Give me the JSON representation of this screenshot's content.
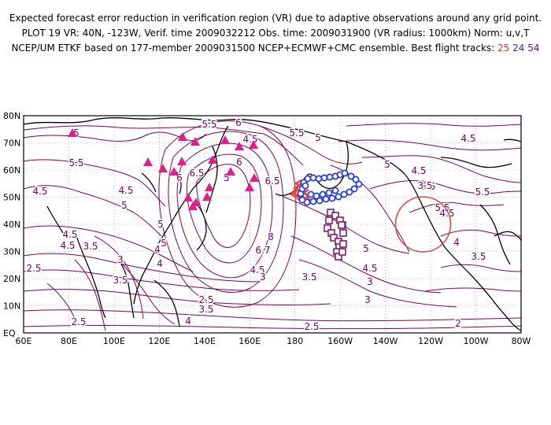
{
  "header": {
    "line1": "Expected forecast error reduction in verification region (VR) due to adaptive observations around any grid point.",
    "line2": "PLOT 19 VR: 40N, -123W, Verif. time 2009032212 Obs. time: 2009031900 (VR radius: 1000km) Norm: u,v,T",
    "line3_prefix": "NCEP/UM ETKF based on 177-member 2009031500 NCEP+ECMWF+CMC ensemble. Best flight tracks:",
    "track_25": "25",
    "track_24": "24",
    "track_54": "54"
  },
  "colors": {
    "contour": "#800060",
    "coast": "#000000",
    "grid": "#9a9a9a",
    "track25": "#f04a3a",
    "track24": "#2a3fd8",
    "track54": "#8a1a70",
    "radar": "#e0208a",
    "verification_circle": "#e8403a"
  },
  "axes": {
    "lat_labels": [
      "80N",
      "70N",
      "60N",
      "50N",
      "40N",
      "30N",
      "20N",
      "10N",
      "EQ"
    ],
    "lon_labels": [
      "60E",
      "80E",
      "100E",
      "120E",
      "140E",
      "160E",
      "180",
      "160W",
      "140W",
      "120W",
      "100W",
      "80W"
    ]
  },
  "contour_labels": [
    {
      "text": "5.5"
    },
    {
      "text": "6"
    },
    {
      "text": "5.5"
    },
    {
      "text": "5"
    },
    {
      "text": "4.5"
    },
    {
      "text": "5"
    },
    {
      "text": "5.5"
    },
    {
      "text": "6"
    },
    {
      "text": "6.5"
    },
    {
      "text": "6"
    },
    {
      "text": "4.5"
    },
    {
      "text": "5"
    },
    {
      "text": "4.5"
    },
    {
      "text": "5"
    },
    {
      "text": "5"
    },
    {
      "text": "5"
    },
    {
      "text": "4.5"
    },
    {
      "text": "4.5"
    },
    {
      "text": "3.5"
    },
    {
      "text": "4"
    },
    {
      "text": "4"
    },
    {
      "text": "6.5"
    },
    {
      "text": "8"
    },
    {
      "text": "6.7"
    },
    {
      "text": "4.5"
    },
    {
      "text": "5.5"
    },
    {
      "text": "5"
    },
    {
      "text": "5.5"
    },
    {
      "text": "5.5"
    },
    {
      "text": "4.5"
    },
    {
      "text": "4.5"
    },
    {
      "text": "4"
    },
    {
      "text": "3.5"
    },
    {
      "text": "2.5"
    },
    {
      "text": "3"
    },
    {
      "text": "3.5"
    },
    {
      "text": "3"
    },
    {
      "text": "3.5"
    },
    {
      "text": "3"
    },
    {
      "text": "3"
    },
    {
      "text": "2.5"
    },
    {
      "text": "3.5"
    },
    {
      "text": "4"
    },
    {
      "text": "2.5"
    },
    {
      "text": "2"
    },
    {
      "text": "2.5"
    },
    {
      "text": "4.5"
    },
    {
      "text": "5"
    },
    {
      "text": "4.5"
    },
    {
      "text": "3.5"
    }
  ]
}
